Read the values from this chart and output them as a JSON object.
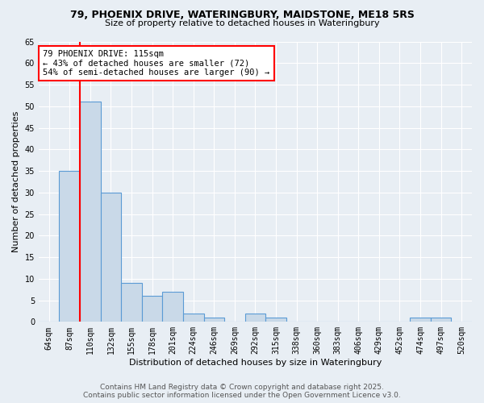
{
  "title1": "79, PHOENIX DRIVE, WATERINGBURY, MAIDSTONE, ME18 5RS",
  "title2": "Size of property relative to detached houses in Wateringbury",
  "xlabel": "Distribution of detached houses by size in Wateringbury",
  "ylabel": "Number of detached properties",
  "categories": [
    "64sqm",
    "87sqm",
    "110sqm",
    "132sqm",
    "155sqm",
    "178sqm",
    "201sqm",
    "224sqm",
    "246sqm",
    "269sqm",
    "292sqm",
    "315sqm",
    "338sqm",
    "360sqm",
    "383sqm",
    "406sqm",
    "429sqm",
    "452sqm",
    "474sqm",
    "497sqm",
    "520sqm"
  ],
  "values": [
    0,
    35,
    51,
    30,
    9,
    6,
    7,
    2,
    1,
    0,
    2,
    1,
    0,
    0,
    0,
    0,
    0,
    0,
    1,
    1,
    0
  ],
  "bar_color": "#c9d9e8",
  "bar_edge_color": "#5b9bd5",
  "red_line_index": 2,
  "annotation_title": "79 PHOENIX DRIVE: 115sqm",
  "annotation_line1": "← 43% of detached houses are smaller (72)",
  "annotation_line2": "54% of semi-detached houses are larger (90) →",
  "ylim": [
    0,
    65
  ],
  "yticks": [
    0,
    5,
    10,
    15,
    20,
    25,
    30,
    35,
    40,
    45,
    50,
    55,
    60,
    65
  ],
  "footer1": "Contains HM Land Registry data © Crown copyright and database right 2025.",
  "footer2": "Contains public sector information licensed under the Open Government Licence v3.0.",
  "background_color": "#e8eef4",
  "plot_bg_color": "#e8eef4",
  "grid_color": "#ffffff",
  "title1_fontsize": 9,
  "title2_fontsize": 8,
  "annotation_fontsize": 7.5,
  "tick_fontsize": 7,
  "label_fontsize": 8,
  "footer_fontsize": 6.5
}
